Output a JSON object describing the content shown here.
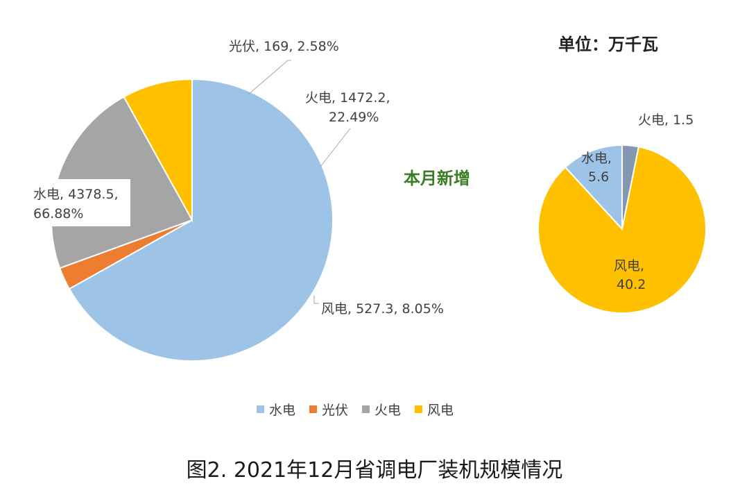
{
  "unit_label": "单位：万千瓦",
  "caption": "图2. 2021年12月省调电厂装机规模情况",
  "chart_data": [
    {
      "type": "pie",
      "title": "",
      "slices": [
        {
          "name": "水电",
          "value": 4378.5,
          "percent": "66.88%",
          "color": "#9dc3e6"
        },
        {
          "name": "光伏",
          "value": 169,
          "percent": "2.58%",
          "color": "#ed7d31"
        },
        {
          "name": "火电",
          "value": 1472.2,
          "percent": "22.49%",
          "color": "#a5a5a5"
        },
        {
          "name": "风电",
          "value": 527.3,
          "percent": "8.05%",
          "color": "#ffc000"
        }
      ],
      "data_labels": [
        {
          "line1": "水电, 4378.5,",
          "line2": "66.88%"
        },
        {
          "line1": "光伏, 169, 2.58%",
          "line2": ""
        },
        {
          "line1": "火电, 1472.2,",
          "line2": "22.49%"
        },
        {
          "line1": "风电, 527.3, 8.05%",
          "line2": ""
        }
      ]
    },
    {
      "type": "pie",
      "title": "本月新增",
      "slices": [
        {
          "name": "水电",
          "value": 5.6,
          "color": "#9dc3e6"
        },
        {
          "name": "火电",
          "value": 1.5,
          "color": "#8497b0"
        },
        {
          "name": "风电",
          "value": 40.2,
          "color": "#ffc000"
        }
      ],
      "data_labels": [
        {
          "line1": "水电,",
          "line2": "5.6"
        },
        {
          "line1": "火电, 1.5",
          "line2": ""
        },
        {
          "line1": "风电,",
          "line2": "40.2"
        }
      ]
    }
  ],
  "legend": [
    {
      "name": "水电",
      "color": "#9dc3e6"
    },
    {
      "name": "光伏",
      "color": "#ed7d31"
    },
    {
      "name": "火电",
      "color": "#a5a5a5"
    },
    {
      "name": "风电",
      "color": "#ffc000"
    }
  ]
}
